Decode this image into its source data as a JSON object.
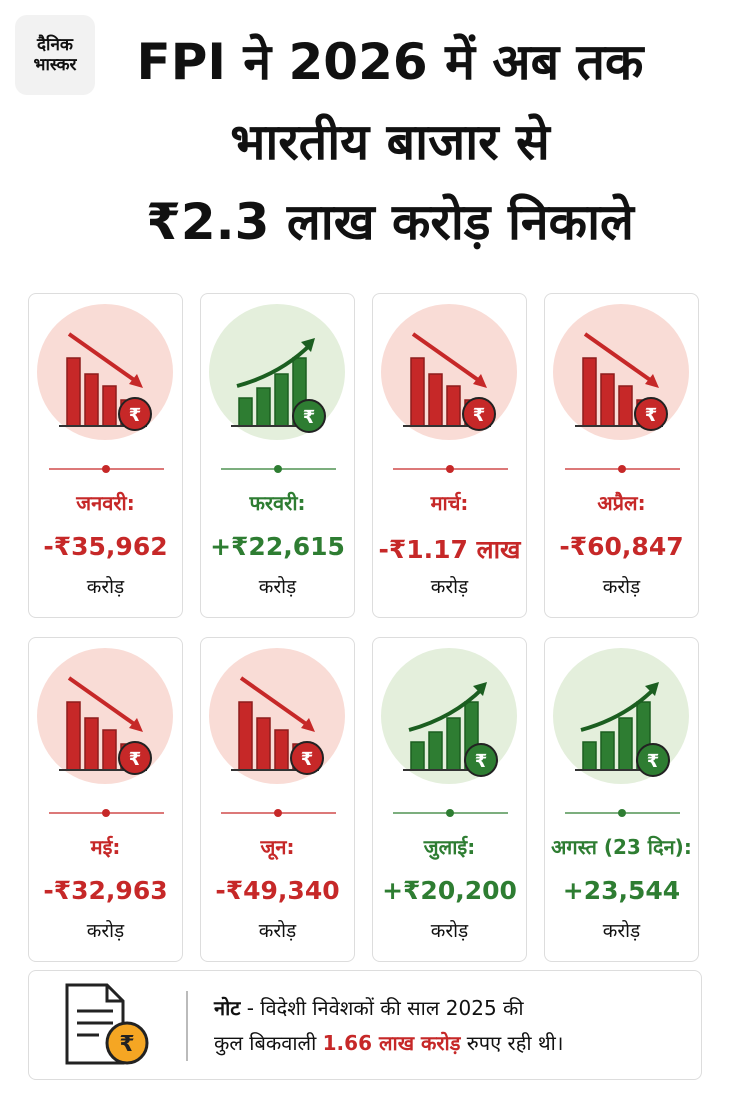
{
  "logo": {
    "line1": "दैनिक",
    "line2": "भास्कर"
  },
  "title": {
    "lines": [
      "FPI ने 2026 में अब तक",
      "भारतीय बाजार से",
      "₹2.3 लाख करोड़ निकाले"
    ]
  },
  "cards": [
    {
      "month": "जनवरी:",
      "amount": "-₹35,962",
      "unit": "करोड़",
      "trend": "down"
    },
    {
      "month": "फरवरी:",
      "amount": "+₹22,615",
      "unit": "करोड़",
      "trend": "up"
    },
    {
      "month": "मार्च:",
      "amount": "-₹1.17 लाख",
      "unit": "करोड़",
      "trend": "down"
    },
    {
      "month": "अप्रैल:",
      "amount": "-₹60,847",
      "unit": "करोड़",
      "trend": "down"
    },
    {
      "month": "मई:",
      "amount": "-₹32,963",
      "unit": "करोड़",
      "trend": "down"
    },
    {
      "month": "जून:",
      "amount": "-₹49,340",
      "unit": "करोड़",
      "trend": "down"
    },
    {
      "month": "जुलाई:",
      "amount": "+₹20,200",
      "unit": "करोड़",
      "trend": "up"
    },
    {
      "month": "अगस्त (23 दिन):",
      "amount": "+23,544",
      "unit": "करोड़",
      "trend": "up"
    }
  ],
  "note": {
    "label": "नोट",
    "line1": "- विदेशी निवेशकों की साल 2025 की",
    "line2_start": "कुल बिकवाली",
    "highlight": "1.66 लाख करोड़",
    "line2_end": "रुपए रही थी।"
  }
}
